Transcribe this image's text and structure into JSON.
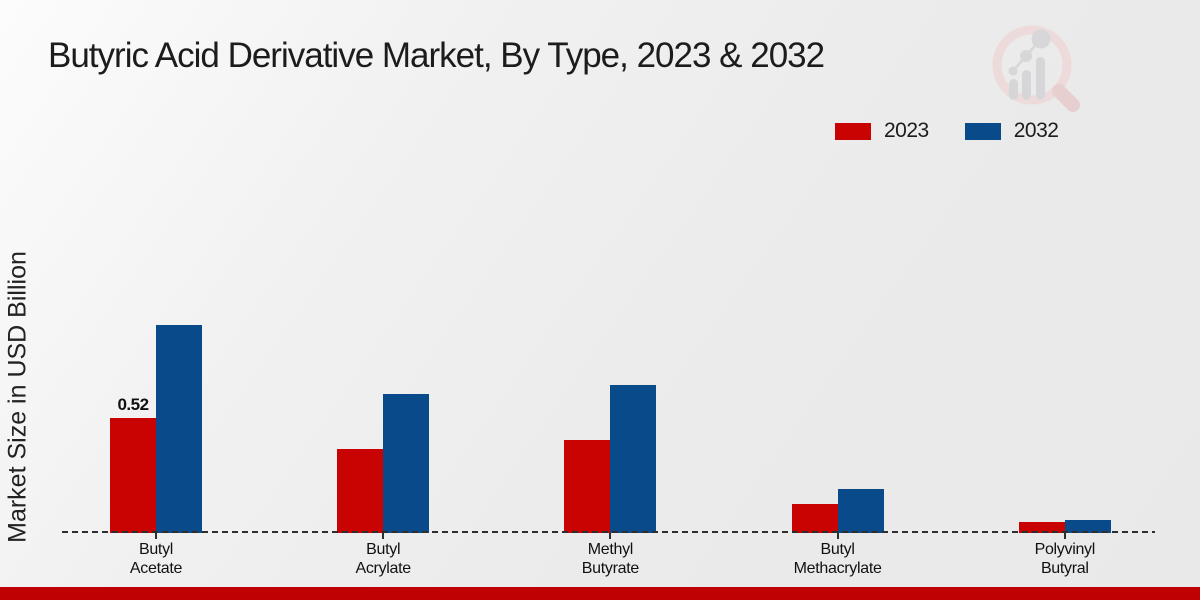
{
  "chart_data": {
    "type": "bar",
    "title": "Butyric Acid Derivative Market, By Type, 2023 & 2032",
    "ylabel": "Market Size in USD Billion",
    "xlabel": "",
    "categories": [
      "Butyl Acetate",
      "Butyl Acrylate",
      "Methyl Butyrate",
      "Butyl Methacrylate",
      "Polyvinyl Butyral"
    ],
    "series": [
      {
        "name": "2023",
        "color": "#c80302",
        "values": [
          0.52,
          0.38,
          0.42,
          0.13,
          0.05
        ]
      },
      {
        "name": "2032",
        "color": "#084a8a",
        "values": [
          0.94,
          0.63,
          0.67,
          0.2,
          0.06
        ]
      }
    ],
    "annotations": [
      {
        "series": "2023",
        "category": "Butyl Acetate",
        "text": "0.52"
      }
    ],
    "ylim": [
      0,
      1.0
    ],
    "grid": false,
    "legend_position": "top-right",
    "baseline_style": "dashed"
  },
  "footer": {
    "bar_color": "#c00101"
  },
  "watermark_icon": "magnifier-bar-chart-logo"
}
